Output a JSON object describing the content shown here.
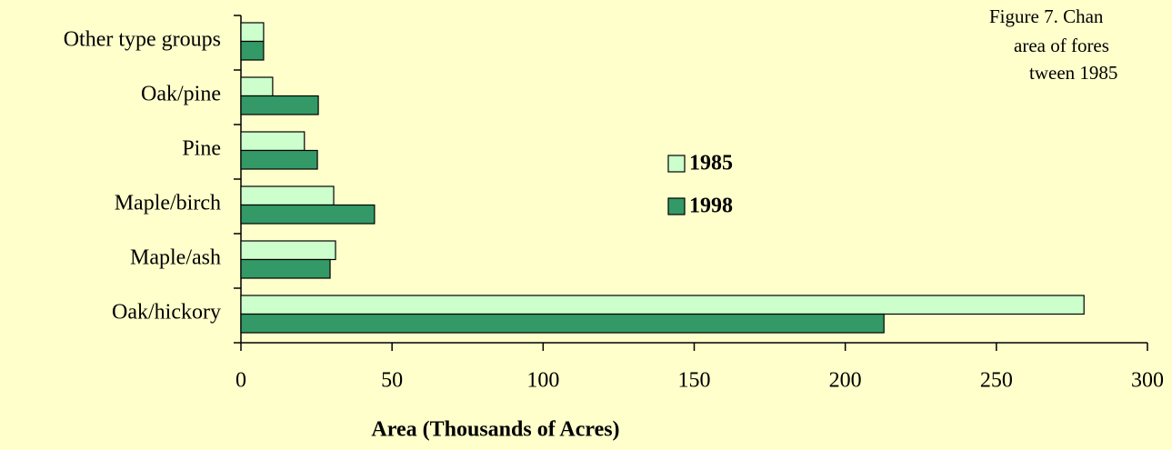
{
  "chart_data": {
    "type": "hbar",
    "annotation": [
      "Figure 7.  Chan",
      "area of fores",
      "tween 1985"
    ],
    "x_label": "Area (Thousands of Acres)",
    "categories": [
      "Other type groups",
      "Oak/pine",
      "Pine",
      "Maple/birch",
      "Maple/ash",
      "Oak/hickory"
    ],
    "series": [
      {
        "name": "1985",
        "color": "#ccffcc",
        "values": [
          7.5,
          10.5,
          21,
          30.7,
          31.3,
          279
        ]
      },
      {
        "name": "1998",
        "color": "#339966",
        "values": [
          7.5,
          25.6,
          25.3,
          44.2,
          29.5,
          212.8
        ]
      }
    ],
    "xlim": [
      0,
      300
    ],
    "xticks": [
      0,
      50,
      100,
      150,
      200,
      250,
      300
    ],
    "legend": "center",
    "grid": false
  }
}
